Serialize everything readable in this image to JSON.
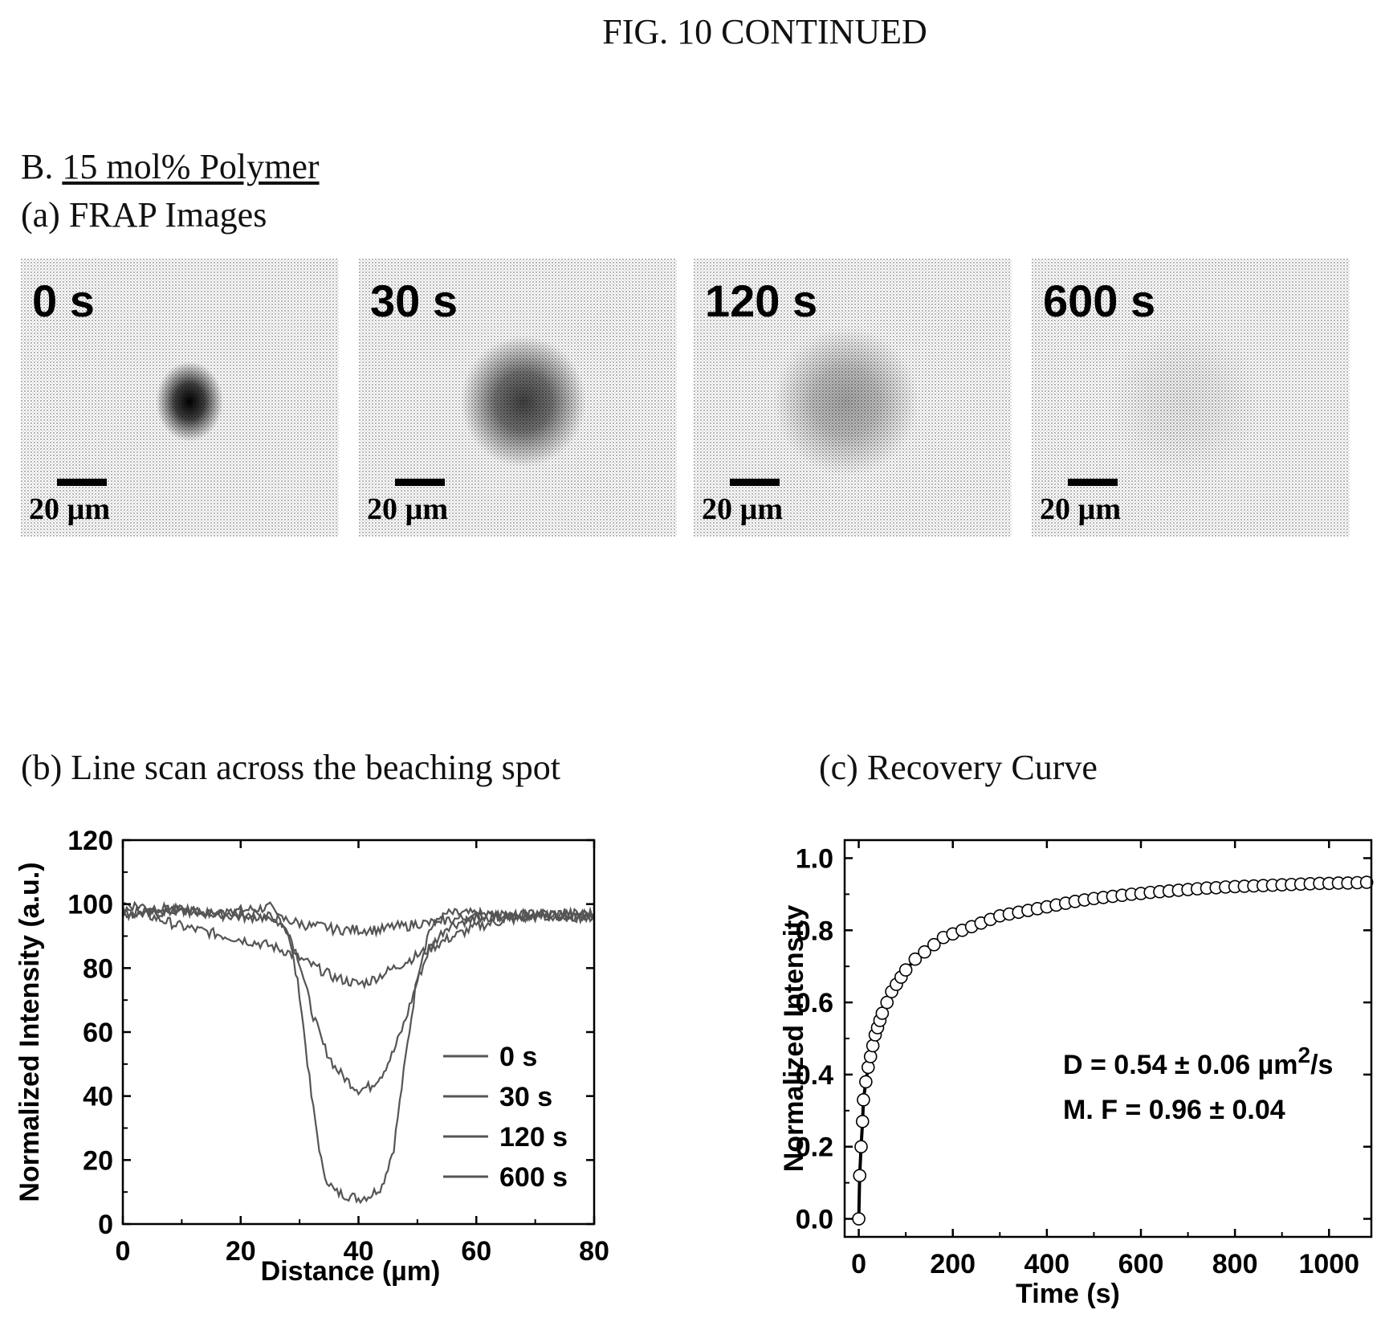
{
  "figure_title": "FIG. 10 CONTINUED",
  "section_prefix": "B.",
  "section_title": "15 mol% Polymer",
  "panel_a_title": "(a) FRAP Images",
  "panel_b_title": "(b) Line scan across the beaching spot",
  "panel_c_title": "(c) Recovery Curve",
  "frap_images": [
    {
      "time": "0 s",
      "scale": "20 µm",
      "spot_darkness": 1.0,
      "spot_spread": 0.35
    },
    {
      "time": "30 s",
      "scale": "20 µm",
      "spot_darkness": 0.75,
      "spot_spread": 0.8
    },
    {
      "time": "120 s",
      "scale": "20 µm",
      "spot_darkness": 0.35,
      "spot_spread": 1.0
    },
    {
      "time": "600 s",
      "scale": "20 µm",
      "spot_darkness": 0.08,
      "spot_spread": 1.1
    }
  ],
  "chart_data": [
    {
      "type": "line",
      "xlabel": "Distance (µm)",
      "ylabel": "Normalized Intensity (a.u.)",
      "xlim": [
        0,
        80
      ],
      "ylim": [
        0,
        120
      ],
      "xticks": [
        "0",
        "20",
        "40",
        "60",
        "80"
      ],
      "yticks": [
        "0",
        "20",
        "40",
        "60",
        "80",
        "100",
        "120"
      ],
      "legend_position": "lower-right",
      "line_color": "#555555",
      "series": [
        {
          "name": "0 s",
          "x": [
            0,
            5,
            10,
            15,
            20,
            25,
            28,
            30,
            32,
            34,
            36,
            38,
            40,
            42,
            44,
            46,
            48,
            50,
            52,
            55,
            60,
            65,
            70,
            75,
            80
          ],
          "y": [
            97,
            98,
            98,
            97,
            98,
            99,
            92,
            72,
            40,
            16,
            10,
            9,
            8,
            9,
            12,
            24,
            52,
            78,
            92,
            97,
            97,
            96,
            97,
            96,
            97
          ]
        },
        {
          "name": "30 s",
          "x": [
            0,
            5,
            10,
            15,
            20,
            25,
            28,
            30,
            32,
            34,
            36,
            38,
            40,
            42,
            44,
            46,
            48,
            50,
            52,
            55,
            60,
            65,
            70,
            75,
            80
          ],
          "y": [
            97,
            97,
            98,
            97,
            97,
            96,
            92,
            82,
            67,
            56,
            49,
            45,
            42,
            43,
            47,
            54,
            64,
            76,
            86,
            93,
            96,
            97,
            96,
            97,
            96
          ]
        },
        {
          "name": "120 s",
          "x": [
            0,
            5,
            10,
            15,
            20,
            25,
            28,
            30,
            32,
            34,
            36,
            38,
            40,
            42,
            44,
            46,
            48,
            50,
            52,
            55,
            60,
            65,
            70,
            75,
            80
          ],
          "y": [
            98,
            96,
            93,
            91,
            89,
            87,
            85,
            83,
            81,
            79,
            77,
            76,
            75,
            76,
            78,
            80,
            82,
            84,
            86,
            89,
            93,
            95,
            96,
            96,
            96
          ]
        },
        {
          "name": "600 s",
          "x": [
            0,
            5,
            10,
            15,
            20,
            25,
            28,
            30,
            32,
            34,
            36,
            38,
            40,
            42,
            44,
            46,
            48,
            50,
            52,
            55,
            60,
            65,
            70,
            75,
            80
          ],
          "y": [
            100,
            99,
            98,
            97,
            96,
            96,
            95,
            94,
            93,
            93,
            92,
            92,
            92,
            92,
            92,
            93,
            93,
            94,
            94,
            95,
            96,
            96,
            97,
            97,
            97
          ]
        }
      ]
    },
    {
      "type": "scatter",
      "xlabel": "Time (s)",
      "ylabel": "Normalized Intensity",
      "xlim": [
        -30,
        1090
      ],
      "ylim": [
        -0.05,
        1.05
      ],
      "xticks": [
        "0",
        "200",
        "400",
        "600",
        "800",
        "1000"
      ],
      "yticks": [
        "0.0",
        "0.2",
        "0.4",
        "0.6",
        "0.8",
        "1.0"
      ],
      "annotations": [
        "D = 0.54 ± 0.06 µm",
        "2",
        "/s",
        "M. F = 0.96 ± 0.04"
      ],
      "fit_line": "solid",
      "series": [
        {
          "x": [
            0,
            2,
            5,
            8,
            10,
            15,
            20,
            25,
            30,
            35,
            40,
            45,
            50,
            60,
            70,
            80,
            90,
            100,
            120,
            140,
            160,
            180,
            200,
            220,
            240,
            260,
            280,
            300,
            320,
            340,
            360,
            380,
            400,
            420,
            440,
            460,
            480,
            500,
            520,
            540,
            560,
            580,
            600,
            620,
            640,
            660,
            680,
            700,
            720,
            740,
            760,
            780,
            800,
            820,
            840,
            860,
            880,
            900,
            920,
            940,
            960,
            980,
            1000,
            1020,
            1040,
            1060,
            1080
          ],
          "y": [
            0.0,
            0.12,
            0.2,
            0.27,
            0.33,
            0.38,
            0.42,
            0.45,
            0.48,
            0.51,
            0.53,
            0.55,
            0.57,
            0.6,
            0.63,
            0.65,
            0.67,
            0.69,
            0.72,
            0.74,
            0.76,
            0.78,
            0.79,
            0.8,
            0.81,
            0.82,
            0.83,
            0.84,
            0.845,
            0.85,
            0.855,
            0.86,
            0.865,
            0.87,
            0.875,
            0.88,
            0.884,
            0.888,
            0.891,
            0.894,
            0.897,
            0.9,
            0.902,
            0.905,
            0.907,
            0.909,
            0.911,
            0.913,
            0.915,
            0.917,
            0.918,
            0.92,
            0.921,
            0.922,
            0.923,
            0.924,
            0.925,
            0.926,
            0.927,
            0.928,
            0.929,
            0.93,
            0.93,
            0.931,
            0.931,
            0.932,
            0.933
          ]
        }
      ]
    }
  ]
}
